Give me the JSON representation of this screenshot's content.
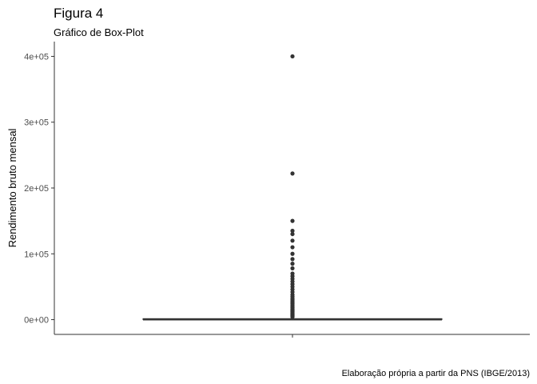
{
  "chart_data": {
    "type": "boxplot",
    "title": "Figura 4",
    "subtitle": "Gráfico de Box-Plot",
    "ylabel": "Rendimento bruto mensal",
    "xlabel": "",
    "caption": "Elaboração própria a partir da PNS (IBGE/2013)",
    "ylim": [
      -20000,
      420000
    ],
    "yticks": [
      0,
      100000,
      200000,
      300000,
      400000
    ],
    "ytick_labels": [
      "0e+00",
      "1e+05",
      "2e+05",
      "3e+05",
      "4e+05"
    ],
    "box": {
      "min": 0,
      "q1": 0,
      "median": 0,
      "q3": 1500,
      "max": 3000
    },
    "outliers": [
      400000,
      222000,
      150000,
      135000,
      130000,
      120000,
      110000,
      100000,
      92000,
      85000,
      78000,
      70000,
      66000,
      62000,
      58000,
      54000,
      50000,
      46000,
      42000,
      38000,
      35000,
      32000,
      30000,
      28000,
      26000,
      24000,
      22000,
      20000,
      18000,
      16000,
      15000,
      14000,
      13000,
      12000,
      11000,
      10000,
      9000,
      8000,
      7000,
      6000,
      5000,
      4000
    ],
    "colors": {
      "box": "#333333",
      "points": "#333333",
      "axis": "#333333"
    },
    "grid": false
  }
}
